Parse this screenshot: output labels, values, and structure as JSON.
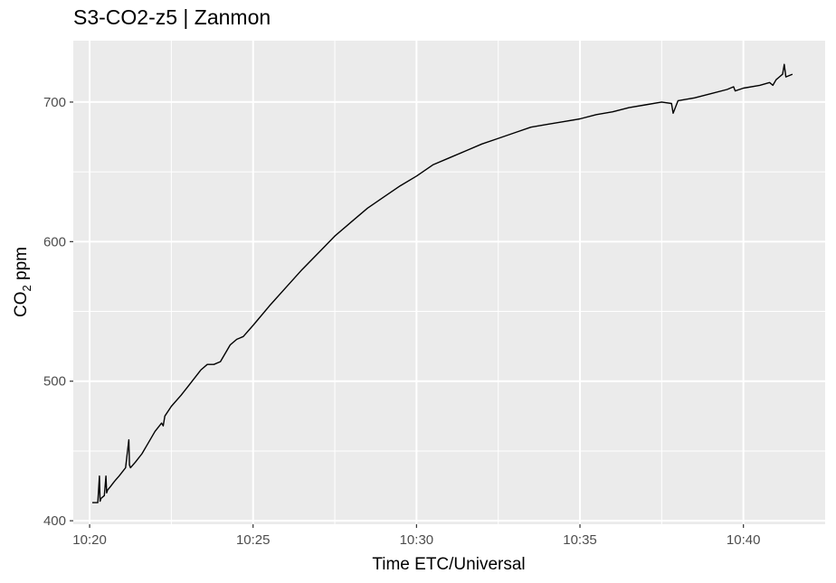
{
  "chart_data": {
    "type": "line",
    "title": "S3-CO2-z5 | Zanmon",
    "xlabel": "Time ETC/Universal",
    "ylabel": {
      "base": "CO",
      "subscript": "2",
      "rest": " ppm"
    },
    "x_unit": "minutes after 10:20",
    "xlim": [
      -0.5,
      22.5
    ],
    "ylim": [
      397.5,
      744
    ],
    "x_ticks": [
      {
        "value": 0,
        "label": "10:20"
      },
      {
        "value": 5,
        "label": "10:25"
      },
      {
        "value": 10,
        "label": "10:30"
      },
      {
        "value": 15,
        "label": "10:35"
      },
      {
        "value": 20,
        "label": "10:40"
      }
    ],
    "y_ticks": [
      {
        "value": 400,
        "label": "400"
      },
      {
        "value": 500,
        "label": "500"
      },
      {
        "value": 600,
        "label": "600"
      },
      {
        "value": 700,
        "label": "700"
      }
    ],
    "grid": true,
    "legend": "none",
    "colors": {
      "panel": "#ebebeb",
      "grid": "#ffffff",
      "line": "#000000"
    },
    "series": [
      {
        "color": "#000000",
        "x": [
          0.08,
          0.25,
          0.3,
          0.32,
          0.35,
          0.45,
          0.5,
          0.52,
          0.55,
          0.62,
          0.75,
          0.9,
          1.1,
          1.2,
          1.22,
          1.25,
          1.4,
          1.6,
          1.8,
          2.0,
          2.2,
          2.25,
          2.3,
          2.5,
          2.8,
          3.0,
          3.2,
          3.4,
          3.6,
          3.8,
          4.0,
          4.3,
          4.5,
          4.6,
          4.7,
          5.0,
          5.5,
          6.0,
          6.5,
          7.0,
          7.5,
          8.0,
          8.5,
          9.0,
          9.5,
          10.0,
          10.5,
          11.0,
          11.5,
          12.0,
          12.5,
          13.0,
          13.5,
          14.0,
          14.5,
          15.0,
          15.5,
          16.0,
          16.5,
          17.0,
          17.5,
          17.8,
          17.85,
          18.0,
          18.5,
          19.0,
          19.5,
          19.7,
          19.75,
          20.0,
          20.5,
          20.8,
          20.9,
          21.0,
          21.1,
          21.2,
          21.25,
          21.3,
          21.5
        ],
        "y": [
          413,
          413,
          432,
          414,
          416,
          418,
          432,
          420,
          422,
          424,
          428,
          432,
          438,
          458,
          440,
          438,
          442,
          448,
          456,
          464,
          470,
          468,
          475,
          482,
          490,
          496,
          502,
          508,
          512,
          512,
          514,
          526,
          530,
          531,
          532,
          540,
          554,
          567,
          580,
          592,
          604,
          614,
          624,
          632,
          640,
          647,
          655,
          660,
          665,
          670,
          674,
          678,
          682,
          684,
          686,
          688,
          691,
          693,
          696,
          698,
          700,
          699,
          692,
          701,
          703,
          706,
          709,
          711,
          708,
          710,
          712,
          714,
          712,
          716,
          718,
          720,
          727,
          718,
          720
        ]
      }
    ]
  }
}
